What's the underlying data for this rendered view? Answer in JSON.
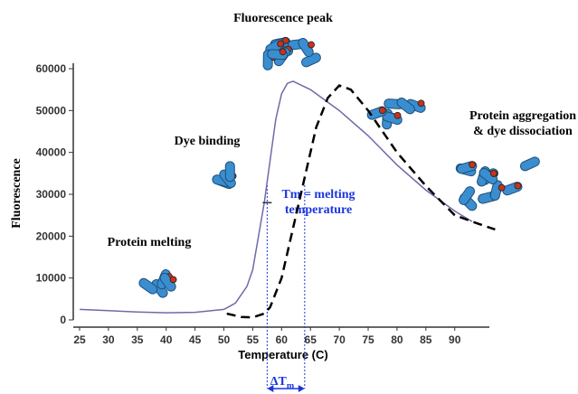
{
  "chart_data": {
    "type": "line",
    "x_label": "Temperature (C)",
    "y_label": "Fluorescence",
    "xlim": [
      25,
      96
    ],
    "ylim": [
      0,
      60000
    ],
    "xticks": [
      25,
      30,
      35,
      40,
      45,
      50,
      55,
      60,
      65,
      70,
      75,
      80,
      85,
      90
    ],
    "yticks": [
      0,
      10000,
      20000,
      30000,
      40000,
      50000,
      60000
    ],
    "series": [
      {
        "color": "#6f6aa8",
        "dash": false,
        "x": [
          25,
          30,
          35,
          40,
          45,
          50,
          52,
          54,
          55,
          56,
          57,
          58,
          59,
          60,
          61,
          62,
          65,
          70,
          75,
          80,
          85,
          90,
          93
        ],
        "values": [
          2500,
          2200,
          1900,
          1700,
          1800,
          2500,
          4000,
          8000,
          12000,
          20000,
          28000,
          38000,
          48000,
          54000,
          56500,
          57000,
          55000,
          50000,
          44000,
          37000,
          31000,
          26000,
          23500
        ]
      },
      {
        "color": "#000000",
        "dash": true,
        "x": [
          50.5,
          53,
          55,
          57,
          58,
          60,
          62,
          64,
          66,
          68,
          70,
          72,
          75,
          80,
          85,
          90,
          94,
          97
        ],
        "values": [
          1500,
          700,
          600,
          1500,
          3000,
          10000,
          22000,
          34000,
          46000,
          53000,
          56000,
          55000,
          50000,
          40000,
          32000,
          25000,
          23000,
          21600
        ]
      }
    ],
    "tm_lines": [
      57.5,
      64
    ],
    "tm_point": [
      57.5,
      28000
    ],
    "annotations": {
      "peak": "Fluorescence peak",
      "dye_binding": "Dye binding",
      "melting": "Protein melting",
      "aggregation": [
        "Protein aggregation",
        "& dye dissociation"
      ],
      "tm": [
        "Tm = melting",
        "temperature"
      ],
      "delta_tm": {
        "main": "ΔT",
        "sub": "m"
      }
    }
  }
}
